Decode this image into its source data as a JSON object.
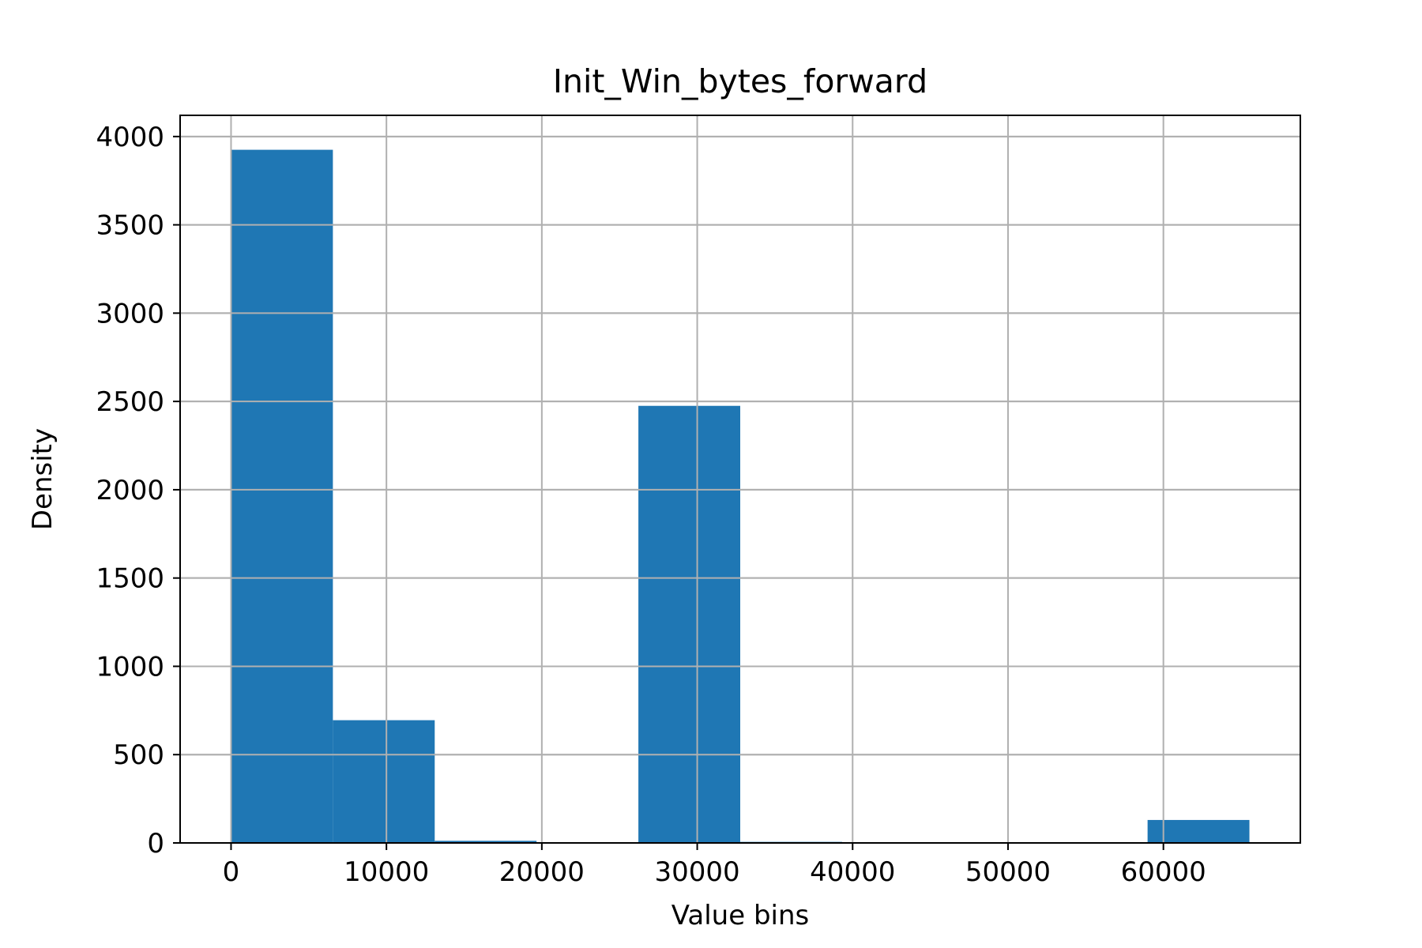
{
  "chart_data": {
    "type": "bar",
    "title": "Init_Win_bytes_forward",
    "xlabel": "Value bins",
    "ylabel": "Density",
    "bar_color": "#1f77b4",
    "grid": true,
    "xlim": [
      -3277,
      68812
    ],
    "ylim": [
      0,
      4120
    ],
    "xticks": [
      0,
      10000,
      20000,
      30000,
      40000,
      50000,
      60000
    ],
    "xtick_labels": [
      "0",
      "10000",
      "20000",
      "30000",
      "40000",
      "50000",
      "60000"
    ],
    "yticks": [
      0,
      500,
      1000,
      1500,
      2000,
      2500,
      3000,
      3500,
      4000
    ],
    "ytick_labels": [
      "0",
      "500",
      "1000",
      "1500",
      "2000",
      "2500",
      "3000",
      "3500",
      "4000"
    ],
    "bins": [
      {
        "start": 0,
        "end": 6553.5,
        "value": 3925
      },
      {
        "start": 6553.5,
        "end": 13107,
        "value": 695
      },
      {
        "start": 13107,
        "end": 19660.5,
        "value": 12
      },
      {
        "start": 19660.5,
        "end": 26214,
        "value": 0
      },
      {
        "start": 26214,
        "end": 32767.5,
        "value": 2475
      },
      {
        "start": 32767.5,
        "end": 39321,
        "value": 6
      },
      {
        "start": 39321,
        "end": 45874.5,
        "value": 4
      },
      {
        "start": 45874.5,
        "end": 52428,
        "value": 0
      },
      {
        "start": 52428,
        "end": 58981.5,
        "value": 0
      },
      {
        "start": 58981.5,
        "end": 65535,
        "value": 130
      }
    ]
  }
}
